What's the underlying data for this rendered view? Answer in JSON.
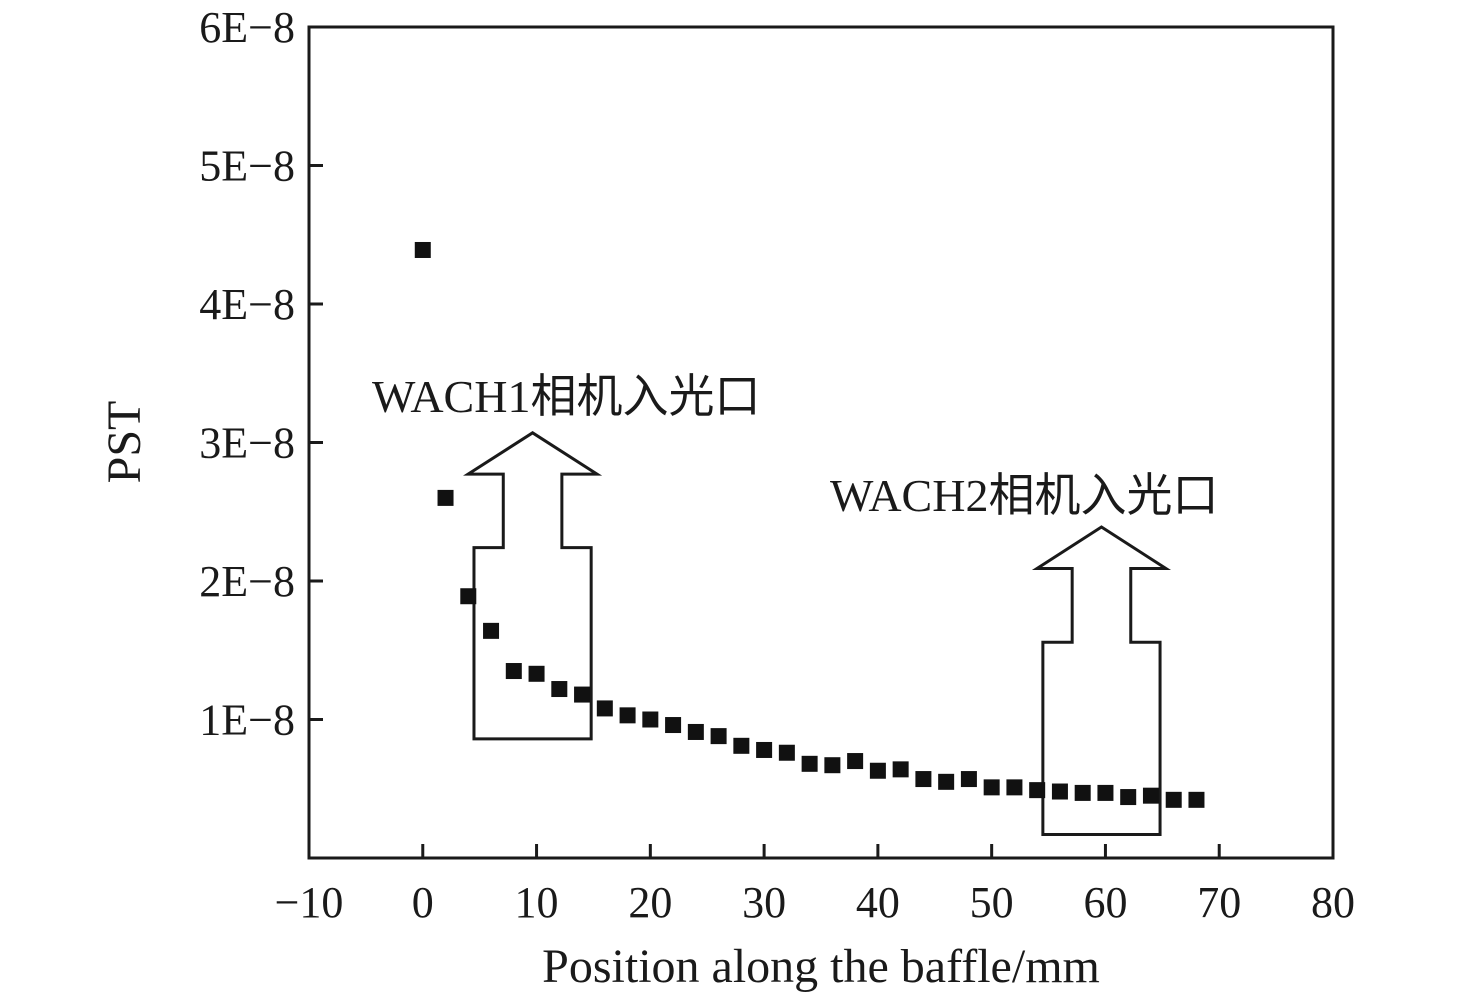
{
  "chart_data": {
    "type": "scatter",
    "title": "",
    "xlabel": "Position along the baffle/mm",
    "ylabel": "PST",
    "xlim": [
      -10,
      80
    ],
    "ylim": [
      0,
      6e-08
    ],
    "y_ticks": [
      {
        "value": 1e-08,
        "label": "1E−8"
      },
      {
        "value": 2e-08,
        "label": "2E−8"
      },
      {
        "value": 3e-08,
        "label": "3E−8"
      },
      {
        "value": 4e-08,
        "label": "4E−8"
      },
      {
        "value": 5e-08,
        "label": "5E−8"
      },
      {
        "value": 6e-08,
        "label": "6E−8"
      }
    ],
    "x_ticks": [
      {
        "value": -10,
        "label": "−10"
      },
      {
        "value": 0,
        "label": "0"
      },
      {
        "value": 10,
        "label": "10"
      },
      {
        "value": 20,
        "label": "20"
      },
      {
        "value": 30,
        "label": "30"
      },
      {
        "value": 40,
        "label": "40"
      },
      {
        "value": 50,
        "label": "50"
      },
      {
        "value": 60,
        "label": "60"
      },
      {
        "value": 70,
        "label": "70"
      },
      {
        "value": 80,
        "label": "80"
      }
    ],
    "grid": false,
    "marker_color": "#111111",
    "series": [
      {
        "x": [
          0,
          2,
          4,
          6,
          8,
          10,
          12,
          14,
          16,
          18,
          20,
          22,
          24,
          26,
          28,
          30,
          32,
          34,
          36,
          38,
          40,
          42,
          44,
          46,
          48,
          50,
          52,
          54,
          56,
          58,
          60,
          62,
          64,
          66,
          68
        ],
        "y": [
          4.39e-08,
          2.6e-08,
          1.89e-08,
          1.64e-08,
          1.35e-08,
          1.33e-08,
          1.22e-08,
          1.18e-08,
          1.08e-08,
          1.03e-08,
          1e-08,
          9.6e-09,
          9.1e-09,
          8.8e-09,
          8.1e-09,
          7.8e-09,
          7.6e-09,
          6.8e-09,
          6.7e-09,
          7e-09,
          6.3e-09,
          6.4e-09,
          5.7e-09,
          5.5e-09,
          5.7e-09,
          5.1e-09,
          5.1e-09,
          4.9e-09,
          4.8e-09,
          4.7e-09,
          4.7e-09,
          4.4e-09,
          4.5e-09,
          4.2e-09,
          4.2e-09
        ]
      }
    ],
    "annotations": [
      {
        "text": "WACH1相机入光口",
        "arrow_x": [
          4.5,
          14.8
        ],
        "arrow_head_x": [
          -6.8,
          26.2
        ],
        "arrow_y_top": 3.07e-08,
        "arrow_y_bottom": 8.6e-09
      },
      {
        "text": "WACH2相机入光口",
        "arrow_x": [
          54.5,
          64.8
        ],
        "arrow_head_x": [
          -6.8,
          26.2
        ],
        "arrow_y_top": 2.39e-08,
        "arrow_y_bottom": 1.7e-09
      }
    ]
  }
}
